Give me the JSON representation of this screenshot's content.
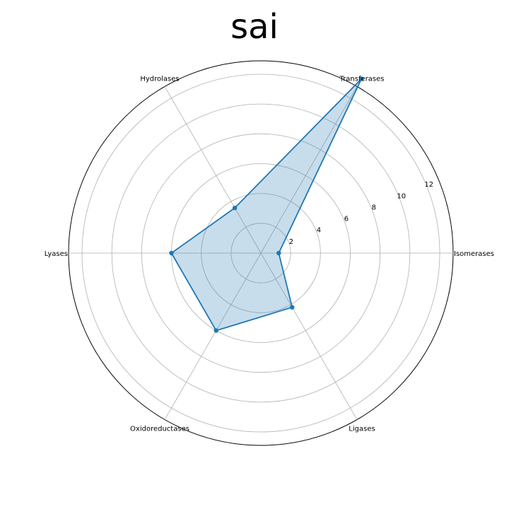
{
  "chart_data": {
    "type": "radar",
    "title": "sai",
    "categories": [
      "Isomerases",
      "Transferases",
      "Hydrolases",
      "Lyases",
      "Oxidoreductases",
      "Ligases"
    ],
    "values": [
      1.2,
      13.5,
      3.5,
      6.0,
      6.0,
      4.2
    ],
    "r_ticks": [
      2,
      4,
      6,
      8,
      10,
      12
    ],
    "r_max": 12.9,
    "grid": true,
    "colors": {
      "line": "#1f77b4",
      "fill": "#1f77b4",
      "grid": "#b0b0b0",
      "frame": "#000000"
    }
  }
}
